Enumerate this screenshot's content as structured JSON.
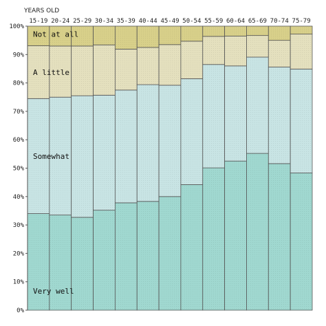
{
  "chart_data": {
    "type": "bar",
    "stacked": true,
    "xlabel": "YEARS OLD",
    "ylabel": "",
    "ylim": [
      0,
      100
    ],
    "yticks": [
      0,
      10,
      20,
      30,
      40,
      50,
      60,
      70,
      80,
      90,
      100
    ],
    "ytick_labels": [
      "0%",
      "10%",
      "20%",
      "30%",
      "40%",
      "50%",
      "60%",
      "70%",
      "80%",
      "90%",
      "100%"
    ],
    "categories": [
      "15-19",
      "20-24",
      "25-29",
      "30-34",
      "35-39",
      "40-44",
      "45-49",
      "50-54",
      "55-59",
      "60-64",
      "65-69",
      "70-74",
      "75-79"
    ],
    "series": [
      {
        "name": "Very well",
        "color": "#a0d8d0",
        "values": [
          34.0,
          33.5,
          32.7,
          35.2,
          37.8,
          38.3,
          40.0,
          44.2,
          50.1,
          52.5,
          55.2,
          51.6,
          48.3
        ]
      },
      {
        "name": "Somewhat",
        "color": "#c8e4e4",
        "values": [
          40.5,
          41.5,
          42.8,
          40.5,
          39.7,
          41.1,
          39.2,
          37.3,
          36.4,
          33.5,
          33.9,
          34.0,
          36.6
        ]
      },
      {
        "name": "A little",
        "color": "#e4e0be",
        "values": [
          18.6,
          18.0,
          17.5,
          17.7,
          14.4,
          13.1,
          14.3,
          13.2,
          9.9,
          10.5,
          7.6,
          9.4,
          12.3
        ]
      },
      {
        "name": "Not at all",
        "color": "#d8d08a",
        "values": [
          6.9,
          7.0,
          7.0,
          6.6,
          8.1,
          7.5,
          6.5,
          5.3,
          3.6,
          3.5,
          3.3,
          5.0,
          2.8
        ]
      }
    ],
    "grid": false,
    "legend": "inline labels at left"
  }
}
